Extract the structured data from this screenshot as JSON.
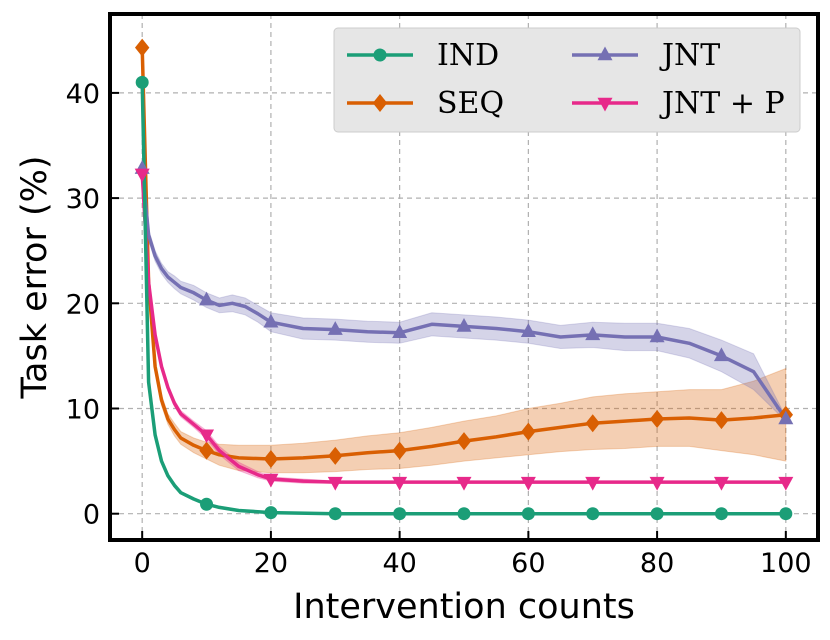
{
  "chart_data": {
    "type": "line",
    "xlabel": "Intervention counts",
    "ylabel": "Task error (%)",
    "xlim": [
      -5,
      105
    ],
    "ylim": [
      -2.5,
      47.5
    ],
    "xticks": [
      0,
      20,
      40,
      60,
      80,
      100
    ],
    "yticks": [
      0,
      10,
      20,
      30,
      40
    ],
    "grid": true,
    "legend_position": "top-right",
    "series": [
      {
        "name": "IND",
        "color": "#1b9e77",
        "marker": "circle",
        "x": [
          0,
          1,
          2,
          3,
          4,
          5,
          6,
          8,
          10,
          12,
          15,
          20,
          30,
          40,
          50,
          60,
          70,
          80,
          90,
          100
        ],
        "y": [
          41,
          12.5,
          7.5,
          5,
          3.6,
          2.7,
          2.0,
          1.4,
          0.9,
          0.6,
          0.3,
          0.1,
          0.0,
          0.0,
          0.0,
          0.0,
          0.0,
          0.0,
          0.0,
          0.0
        ],
        "lower": [
          41,
          12.3,
          7.3,
          4.8,
          3.4,
          2.5,
          1.9,
          1.3,
          0.8,
          0.5,
          0.2,
          0.0,
          0.0,
          0.0,
          0.0,
          0.0,
          0.0,
          0.0,
          0.0,
          0.0
        ],
        "upper": [
          41,
          12.7,
          7.7,
          5.2,
          3.8,
          2.9,
          2.1,
          1.5,
          1.0,
          0.7,
          0.4,
          0.2,
          0.0,
          0.0,
          0.0,
          0.0,
          0.0,
          0.0,
          0.0,
          0.0
        ],
        "marker_x": [
          0,
          10,
          20,
          30,
          40,
          50,
          60,
          70,
          80,
          90,
          100
        ]
      },
      {
        "name": "SEQ",
        "color": "#d95f02",
        "marker": "diamond",
        "x": [
          0,
          1,
          2,
          3,
          4,
          5,
          6,
          8,
          10,
          12,
          15,
          20,
          25,
          30,
          35,
          40,
          45,
          50,
          55,
          60,
          65,
          70,
          75,
          80,
          85,
          90,
          95,
          100
        ],
        "y": [
          44.3,
          22,
          14,
          10.8,
          9.0,
          8.0,
          7.2,
          6.5,
          6.0,
          5.6,
          5.3,
          5.2,
          5.3,
          5.5,
          5.8,
          6.0,
          6.4,
          6.9,
          7.3,
          7.8,
          8.2,
          8.6,
          8.8,
          9.0,
          9.1,
          8.9,
          9.1,
          9.4
        ],
        "lower": [
          44.3,
          21.5,
          13.5,
          10.3,
          8.5,
          7.4,
          6.6,
          5.8,
          5.2,
          4.6,
          4.1,
          3.9,
          3.9,
          4.0,
          4.2,
          4.3,
          4.6,
          5.0,
          5.3,
          5.6,
          5.9,
          6.1,
          6.2,
          6.4,
          6.4,
          6.0,
          5.6,
          5.0
        ],
        "upper": [
          44.3,
          22.5,
          14.5,
          11.3,
          9.5,
          8.6,
          7.8,
          7.2,
          6.8,
          6.6,
          6.5,
          6.5,
          6.7,
          7.0,
          7.4,
          7.7,
          8.2,
          8.8,
          9.3,
          10.0,
          10.5,
          11.1,
          11.4,
          11.6,
          11.8,
          11.8,
          12.6,
          13.8
        ],
        "marker_x": [
          0,
          10,
          20,
          30,
          40,
          50,
          60,
          70,
          80,
          90,
          100
        ]
      },
      {
        "name": "JNT",
        "color": "#7570b3",
        "marker": "triangle-up",
        "x": [
          0,
          1,
          2,
          3,
          4,
          5,
          6,
          8,
          10,
          12,
          14,
          16,
          18,
          20,
          25,
          30,
          35,
          40,
          45,
          50,
          55,
          60,
          65,
          70,
          75,
          80,
          85,
          90,
          95,
          100
        ],
        "y": [
          32.8,
          26.5,
          24.5,
          23.3,
          22.5,
          22.0,
          21.5,
          21.0,
          20.3,
          19.8,
          20.0,
          19.7,
          19.0,
          18.2,
          17.6,
          17.5,
          17.3,
          17.2,
          18.0,
          17.8,
          17.6,
          17.3,
          16.8,
          17.0,
          16.8,
          16.8,
          16.2,
          15.0,
          13.5,
          9.0
        ],
        "lower": [
          32.8,
          26.0,
          24.0,
          22.8,
          22.0,
          21.4,
          20.9,
          20.3,
          19.6,
          19.1,
          19.2,
          18.9,
          18.2,
          17.3,
          16.6,
          16.5,
          16.3,
          16.2,
          16.9,
          16.7,
          16.5,
          16.2,
          15.7,
          15.8,
          15.5,
          15.5,
          14.8,
          13.5,
          11.8,
          8.8
        ],
        "upper": [
          32.8,
          27.0,
          25.0,
          23.8,
          23.0,
          22.6,
          22.1,
          21.7,
          21.0,
          20.5,
          20.8,
          20.5,
          19.8,
          19.1,
          18.6,
          18.5,
          18.3,
          18.2,
          19.1,
          18.9,
          18.7,
          18.4,
          17.9,
          18.2,
          18.1,
          18.1,
          17.6,
          16.5,
          15.2,
          9.2
        ],
        "marker_x": [
          0,
          10,
          20,
          30,
          40,
          50,
          60,
          70,
          80,
          90,
          100
        ]
      },
      {
        "name": "JNT + P",
        "color": "#e7298a",
        "marker": "triangle-down",
        "x": [
          0,
          1,
          2,
          3,
          4,
          5,
          6,
          8,
          10,
          12,
          15,
          18,
          20,
          25,
          30,
          40,
          50,
          60,
          70,
          80,
          90,
          100
        ],
        "y": [
          32.3,
          22,
          17,
          14,
          12,
          10.5,
          9.5,
          8.5,
          7.5,
          6.0,
          4.5,
          3.7,
          3.3,
          3.1,
          3.0,
          3.0,
          3.0,
          3.0,
          3.0,
          3.0,
          3.0,
          3.0
        ],
        "lower": [
          32.3,
          21.7,
          16.7,
          13.7,
          11.7,
          10.2,
          9.2,
          8.2,
          7.1,
          5.6,
          4.1,
          3.4,
          3.1,
          2.9,
          2.9,
          2.9,
          2.9,
          2.9,
          2.9,
          2.9,
          2.9,
          2.9
        ],
        "upper": [
          32.3,
          22.3,
          17.3,
          14.3,
          12.3,
          10.8,
          9.8,
          8.8,
          7.9,
          6.4,
          4.9,
          4.0,
          3.5,
          3.3,
          3.1,
          3.1,
          3.1,
          3.1,
          3.1,
          3.1,
          3.1,
          3.1
        ],
        "marker_x": [
          0,
          10,
          20,
          30,
          40,
          50,
          60,
          70,
          80,
          90,
          100
        ]
      }
    ]
  }
}
